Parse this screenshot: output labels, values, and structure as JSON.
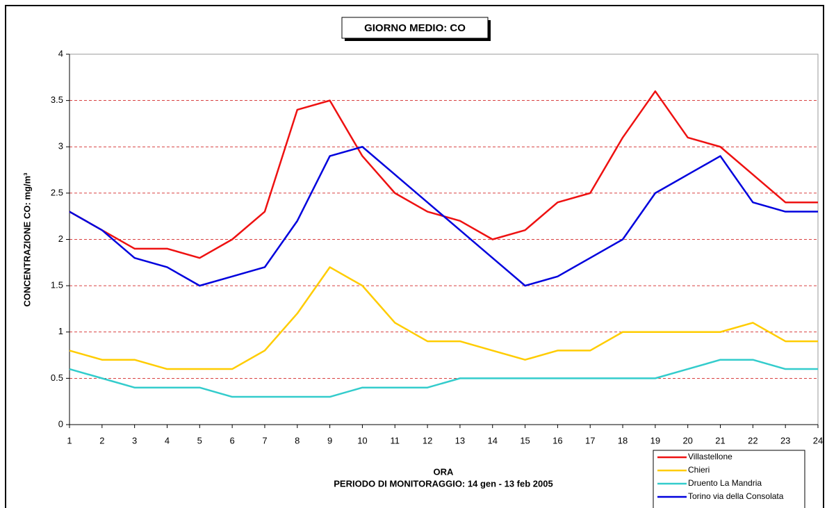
{
  "chart_data": {
    "type": "line",
    "title": "GIORNO MEDIO: CO",
    "y_label": "CONCENTRAZIONE CO: mg/m³",
    "x_label": "ORA",
    "note": "PERIODO DI MONITORAGGIO: 14 gen - 13 feb 2005",
    "x": [
      1,
      2,
      3,
      4,
      5,
      6,
      7,
      8,
      9,
      10,
      11,
      12,
      13,
      14,
      15,
      16,
      17,
      18,
      19,
      20,
      21,
      22,
      23,
      24
    ],
    "xlim": [
      1,
      24
    ],
    "xticks": [
      1,
      2,
      3,
      4,
      5,
      6,
      7,
      8,
      9,
      10,
      11,
      12,
      13,
      14,
      15,
      16,
      17,
      18,
      19,
      20,
      21,
      22,
      23,
      24
    ],
    "ylim": [
      0,
      4
    ],
    "yticks": [
      0,
      0.5,
      1,
      1.5,
      2,
      2.5,
      3,
      3.5,
      4
    ],
    "grid": true,
    "legend": "lower right",
    "series": [
      {
        "name": "Villastellone",
        "color": "#ee1111",
        "values": [
          2.3,
          2.1,
          1.9,
          1.9,
          1.8,
          2.0,
          2.3,
          3.4,
          3.5,
          2.9,
          2.5,
          2.3,
          2.2,
          2.0,
          2.1,
          2.4,
          2.5,
          3.1,
          3.6,
          3.1,
          3.0,
          2.7,
          2.4,
          2.4
        ]
      },
      {
        "name": "Chieri",
        "color": "#ffcc00",
        "values": [
          0.8,
          0.7,
          0.7,
          0.6,
          0.6,
          0.6,
          0.8,
          1.2,
          1.7,
          1.5,
          1.1,
          0.9,
          0.9,
          0.8,
          0.7,
          0.8,
          0.8,
          1.0,
          1.0,
          1.0,
          1.0,
          1.1,
          0.9,
          0.9
        ]
      },
      {
        "name": "Druento La Mandria",
        "color": "#33cccc",
        "values": [
          0.6,
          0.5,
          0.4,
          0.4,
          0.4,
          0.3,
          0.3,
          0.3,
          0.3,
          0.4,
          0.4,
          0.4,
          0.5,
          0.5,
          0.5,
          0.5,
          0.5,
          0.5,
          0.5,
          0.6,
          0.7,
          0.7,
          0.6,
          0.6
        ]
      },
      {
        "name": "Torino via della Consolata",
        "color": "#0000dd",
        "values": [
          2.3,
          2.1,
          1.8,
          1.7,
          1.5,
          1.6,
          1.7,
          2.2,
          2.9,
          3.0,
          2.7,
          2.4,
          2.1,
          1.8,
          1.5,
          1.6,
          1.8,
          2.0,
          2.5,
          2.7,
          2.9,
          2.4,
          2.3,
          2.3
        ]
      }
    ]
  }
}
